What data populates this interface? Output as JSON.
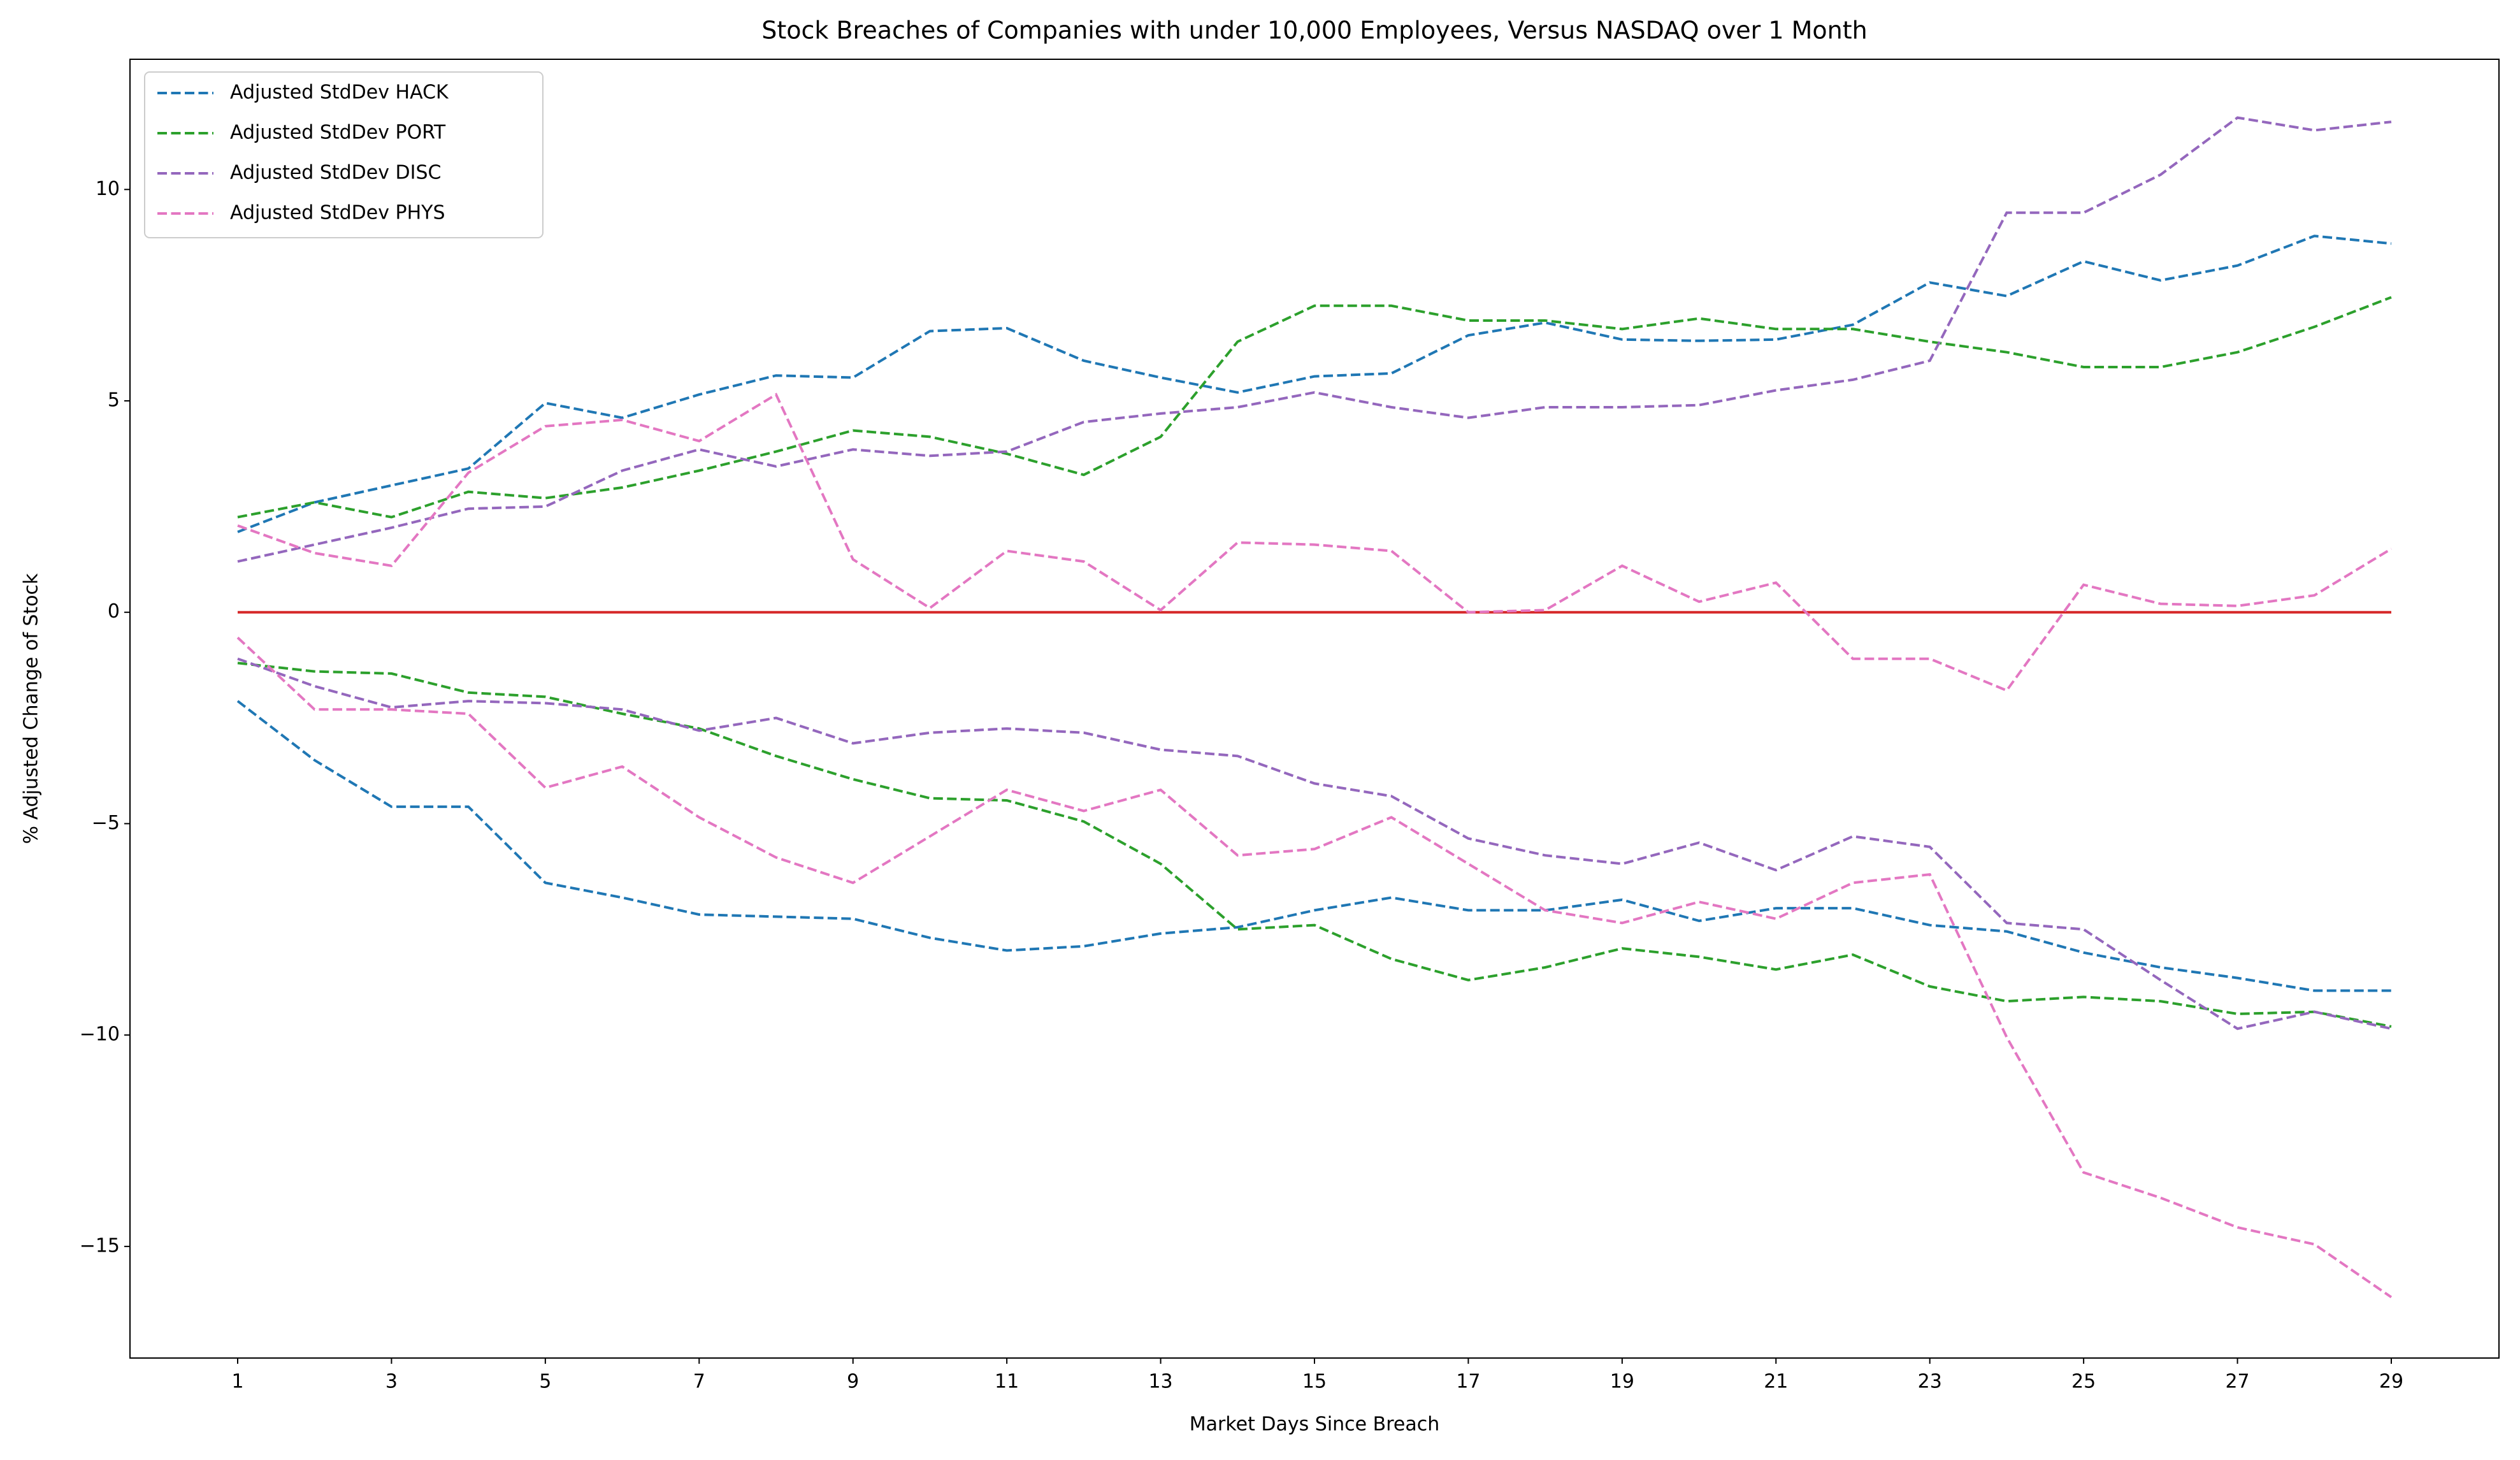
{
  "chart_data": {
    "type": "line",
    "title": "Stock Breaches of Companies with under 10,000 Employees, Versus NASDAQ over 1 Month",
    "x_label": "Market Days Since Breach",
    "y_label": "% Adjusted Change of Stock",
    "x": [
      1,
      2,
      3,
      4,
      5,
      6,
      7,
      8,
      9,
      10,
      11,
      12,
      13,
      14,
      15,
      16,
      17,
      18,
      19,
      20,
      21,
      22,
      23,
      24,
      25,
      26,
      27,
      28,
      29
    ],
    "series": [
      {
        "name": "Adjusted StdDev HACK",
        "color": "#1f77b4",
        "values": [
          1.9,
          2.6,
          3.0,
          3.4,
          4.95,
          4.6,
          5.15,
          5.6,
          5.55,
          6.65,
          6.72,
          5.95,
          5.55,
          5.2,
          5.58,
          5.65,
          6.55,
          6.85,
          6.45,
          6.42,
          6.45,
          6.8,
          7.8,
          7.48,
          8.3,
          7.85,
          8.2,
          8.9,
          8.72
        ],
        "lower": [
          -2.1,
          -3.5,
          -4.6,
          -4.6,
          -6.4,
          -6.75,
          -7.15,
          -7.2,
          -7.25,
          -7.7,
          -8.0,
          -7.9,
          -7.6,
          -7.45,
          -7.05,
          -6.75,
          -7.05,
          -7.05,
          -6.8,
          -7.3,
          -7.0,
          -7.0,
          -7.4,
          -7.55,
          -8.05,
          -8.4,
          -8.65,
          -8.95,
          -8.95
        ]
      },
      {
        "name": "Adjusted StdDev PORT",
        "color": "#2ca02c",
        "values": [
          2.25,
          2.6,
          2.25,
          2.85,
          2.7,
          2.95,
          3.35,
          3.8,
          4.3,
          4.15,
          3.75,
          3.25,
          4.15,
          6.4,
          7.25,
          7.25,
          6.9,
          6.9,
          6.7,
          6.95,
          6.7,
          6.7,
          6.4,
          6.15,
          5.8,
          5.8,
          6.15,
          6.75,
          7.45
        ],
        "lower": [
          -1.2,
          -1.4,
          -1.45,
          -1.9,
          -2.0,
          -2.4,
          -2.75,
          -3.4,
          -3.95,
          -4.4,
          -4.45,
          -4.95,
          -5.95,
          -7.5,
          -7.4,
          -8.2,
          -8.7,
          -8.4,
          -7.95,
          -8.15,
          -8.45,
          -8.1,
          -8.85,
          -9.2,
          -9.1,
          -9.2,
          -9.5,
          -9.45,
          -9.8
        ]
      },
      {
        "name": "Adjusted StdDev DISC",
        "color": "#9467bd",
        "values": [
          1.2,
          1.6,
          2.0,
          2.45,
          2.5,
          3.35,
          3.85,
          3.45,
          3.85,
          3.7,
          3.8,
          4.5,
          4.7,
          4.85,
          5.2,
          4.85,
          4.6,
          4.85,
          4.85,
          4.9,
          5.25,
          5.5,
          5.95,
          9.45,
          9.45,
          10.35,
          11.7,
          11.4,
          11.6
        ],
        "lower": [
          -1.1,
          -1.75,
          -2.25,
          -2.1,
          -2.15,
          -2.3,
          -2.8,
          -2.5,
          -3.1,
          -2.85,
          -2.75,
          -2.85,
          -3.25,
          -3.4,
          -4.05,
          -4.35,
          -5.35,
          -5.75,
          -5.95,
          -5.45,
          -6.1,
          -5.3,
          -5.55,
          -7.35,
          -7.5,
          -8.7,
          -9.85,
          -9.45,
          -9.85
        ]
      },
      {
        "name": "Adjusted StdDev PHYS",
        "color": "#e377c2",
        "values": [
          2.05,
          1.4,
          1.1,
          3.3,
          4.4,
          4.55,
          4.05,
          5.15,
          1.25,
          0.1,
          1.45,
          1.2,
          0.05,
          1.65,
          1.6,
          1.45,
          0.0,
          0.05,
          1.1,
          0.25,
          0.7,
          -1.1,
          -1.1,
          -1.85,
          0.65,
          0.2,
          0.15,
          0.4,
          1.5
        ],
        "lower": [
          -0.6,
          -2.3,
          -2.3,
          -2.4,
          -4.15,
          -3.65,
          -4.85,
          -5.8,
          -6.4,
          -5.3,
          -4.2,
          -4.7,
          -4.2,
          -5.75,
          -5.6,
          -4.85,
          -5.95,
          -7.05,
          -7.35,
          -6.85,
          -7.25,
          -6.4,
          -6.2,
          -10.05,
          -13.25,
          -13.85,
          -14.55,
          -14.95,
          -16.2
        ]
      }
    ],
    "baseline": 0,
    "baseline_color": "#d62728",
    "xlim": [
      -0.4,
      30.4
    ],
    "xticks": [
      1,
      3,
      5,
      7,
      9,
      11,
      13,
      15,
      17,
      19,
      21,
      23,
      25,
      27,
      29
    ],
    "ylim": [
      -17.64,
      13.08
    ],
    "yticks": [
      {
        "value": -15,
        "label": "−15"
      },
      {
        "value": -10,
        "label": "−10"
      },
      {
        "value": -5,
        "label": "−5"
      },
      0,
      5,
      10
    ],
    "legend": "upper left",
    "grid": false
  }
}
